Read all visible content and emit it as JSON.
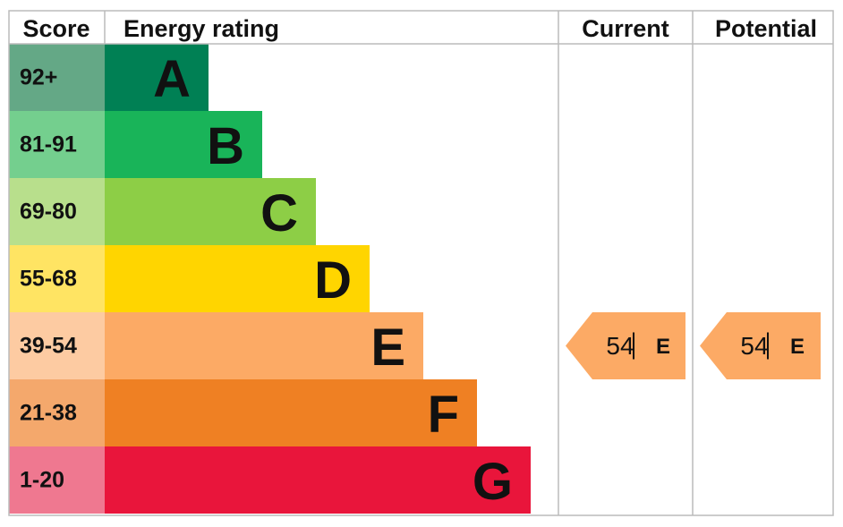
{
  "header": {
    "score": "Score",
    "rating": "Energy rating",
    "current": "Current",
    "potential": "Potential"
  },
  "rows": [
    {
      "score": "92+",
      "letter": "A",
      "color": "#008054",
      "score_color": "#64a886"
    },
    {
      "score": "81-91",
      "letter": "B",
      "color": "#19b459",
      "score_color": "#74cf8e"
    },
    {
      "score": "69-80",
      "letter": "C",
      "color": "#8dce46",
      "score_color": "#b8df8c"
    },
    {
      "score": "55-68",
      "letter": "D",
      "color": "#ffd500",
      "score_color": "#ffe463"
    },
    {
      "score": "39-54",
      "letter": "E",
      "color": "#fcaa65",
      "score_color": "#fdcba2"
    },
    {
      "score": "21-38",
      "letter": "F",
      "color": "#ef8023",
      "score_color": "#f4a86c"
    },
    {
      "score": "1-20",
      "letter": "G",
      "color": "#e9153b",
      "score_color": "#ef7890"
    }
  ],
  "current": {
    "score": 54,
    "band": "E"
  },
  "potential": {
    "score": 54,
    "band": "E"
  }
}
